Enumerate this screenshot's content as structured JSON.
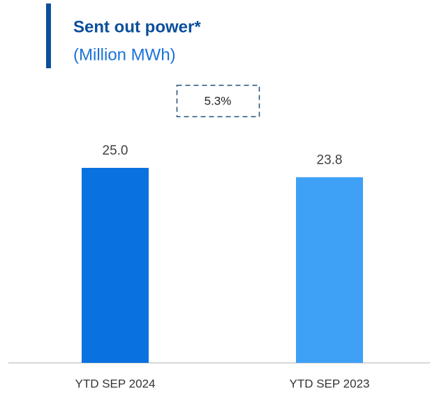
{
  "chart_data": {
    "type": "bar",
    "title": "Sent out power*",
    "subtitle": "(Million MWh)",
    "annotation": "5.3%",
    "categories": [
      "YTD SEP 2024",
      "YTD SEP 2023"
    ],
    "values": [
      25.0,
      23.8
    ],
    "value_labels": [
      "25.0",
      "23.8"
    ],
    "colors": [
      "#0a72e0",
      "#3ea1f6"
    ]
  }
}
